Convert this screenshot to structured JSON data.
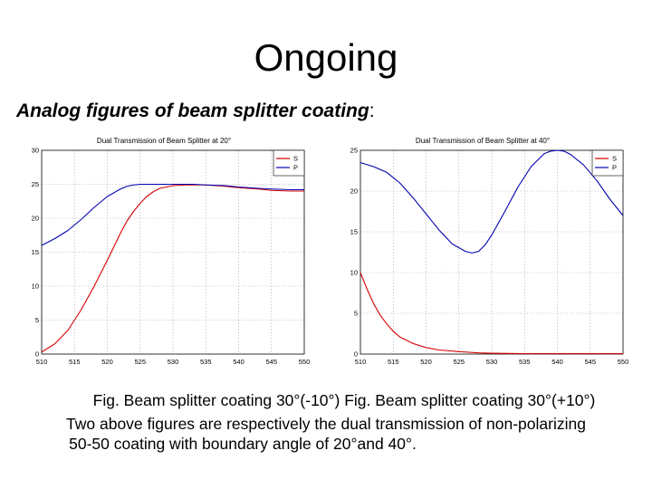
{
  "slide": {
    "title": "Ongoing",
    "subtitle_bold": "Analog figures of beam splitter coating",
    "subtitle_colon": ":",
    "caption_line1": "Fig. Beam splitter coating  30°(-10°) Fig. Beam splitter coating 30°(+10°)",
    "caption_line2": "Two above figures are respectively the dual transmission of non-polarizing",
    "caption_line3": "50-50 coating with boundary angle of 20°and 40°."
  },
  "colors": {
    "s": "#d40000",
    "p": "#0000b0",
    "grid": "#9a9a9a",
    "axis": "#000000"
  },
  "chart_data": [
    {
      "type": "line",
      "title": "Dual Transmission of Beam Splitter at 20°",
      "xlabel": "",
      "ylabel": "",
      "xlim": [
        510,
        550
      ],
      "ylim": [
        0,
        30
      ],
      "xticks": [
        "510",
        "515",
        "520",
        "525",
        "530",
        "535",
        "540",
        "545",
        "550"
      ],
      "yticks": [
        "0",
        "5",
        "10",
        "15",
        "20",
        "25",
        "30"
      ],
      "grid": true,
      "legend": "top-right",
      "series": [
        {
          "name": "S",
          "color": "#d40000",
          "x": [
            510,
            512,
            514,
            516,
            518,
            520,
            521,
            522,
            523,
            524,
            525,
            526,
            527,
            528,
            530,
            532,
            535,
            538,
            540,
            543,
            545,
            548,
            550
          ],
          "y": [
            0.3,
            1.5,
            3.5,
            6.5,
            10,
            13.8,
            15.8,
            17.8,
            19.6,
            21.0,
            22.2,
            23.2,
            23.9,
            24.4,
            24.8,
            24.9,
            24.9,
            24.7,
            24.5,
            24.3,
            24.1,
            24.0,
            24.0
          ]
        },
        {
          "name": "P",
          "color": "#0000b0",
          "x": [
            510,
            512,
            514,
            516,
            518,
            520,
            522,
            523,
            524,
            525,
            527,
            530,
            533,
            535,
            538,
            540,
            543,
            545,
            548,
            550
          ],
          "y": [
            16.0,
            17.0,
            18.2,
            19.8,
            21.6,
            23.2,
            24.3,
            24.7,
            24.9,
            25.0,
            25.0,
            25.0,
            25.0,
            24.9,
            24.8,
            24.6,
            24.4,
            24.3,
            24.2,
            24.2
          ]
        }
      ]
    },
    {
      "type": "line",
      "title": "Dual Transmission of Beam Splitter at 40°",
      "xlabel": "",
      "ylabel": "",
      "xlim": [
        510,
        550
      ],
      "ylim": [
        0,
        25
      ],
      "xticks": [
        "510",
        "515",
        "520",
        "525",
        "530",
        "535",
        "540",
        "545",
        "550"
      ],
      "yticks": [
        "0",
        "5",
        "10",
        "15",
        "20",
        "25"
      ],
      "grid": true,
      "legend": "top-right",
      "series": [
        {
          "name": "S",
          "color": "#d40000",
          "x": [
            510,
            511,
            512,
            513,
            514,
            515,
            516,
            518,
            520,
            522,
            525,
            528,
            530,
            535,
            540,
            545,
            550
          ],
          "y": [
            10.0,
            8.0,
            6.2,
            4.8,
            3.7,
            2.8,
            2.1,
            1.3,
            0.8,
            0.5,
            0.3,
            0.15,
            0.1,
            0.05,
            0.05,
            0.05,
            0.05
          ]
        },
        {
          "name": "P",
          "color": "#0000b0",
          "x": [
            510,
            512,
            514,
            516,
            518,
            520,
            522,
            524,
            526,
            527,
            528,
            529,
            530,
            532,
            534,
            536,
            538,
            539,
            540,
            541,
            542,
            544,
            546,
            548,
            550
          ],
          "y": [
            23.5,
            23.0,
            22.3,
            21.0,
            19.2,
            17.2,
            15.2,
            13.5,
            12.6,
            12.4,
            12.6,
            13.4,
            14.6,
            17.5,
            20.5,
            23.0,
            24.6,
            24.9,
            25.0,
            24.9,
            24.5,
            23.2,
            21.3,
            19.0,
            17.0
          ]
        }
      ]
    }
  ]
}
